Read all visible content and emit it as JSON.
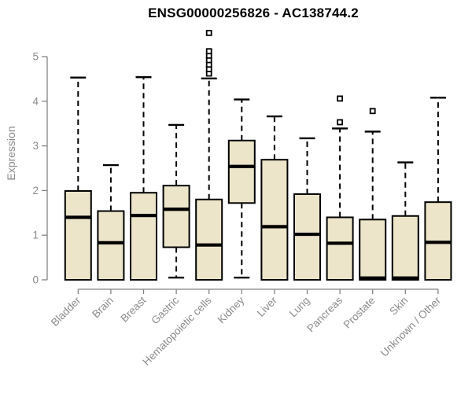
{
  "chart_data": {
    "type": "boxplot",
    "title": "ENSG00000256826 - AC138744.2",
    "ylabel": "Expression",
    "xlabel": "",
    "ylim": [
      0,
      5
    ],
    "yticks": [
      0,
      1,
      2,
      3,
      4,
      5
    ],
    "grid": false,
    "legend": "none",
    "categories": [
      "Bladder",
      "Brain",
      "Breast",
      "Gastric",
      "Hematopoietic cells",
      "Kidney",
      "Liver",
      "Lung",
      "Pancreas",
      "Prostate",
      "Skin",
      "Unknown / Other"
    ],
    "series": [
      {
        "name": "Bladder",
        "low": 0,
        "q1": 0,
        "median": 1.4,
        "q3": 1.99,
        "high": 4.53,
        "outliers": []
      },
      {
        "name": "Brain",
        "low": 0,
        "q1": 0,
        "median": 0.83,
        "q3": 1.54,
        "high": 2.57,
        "outliers": []
      },
      {
        "name": "Breast",
        "low": 0,
        "q1": 0,
        "median": 1.44,
        "q3": 1.95,
        "high": 4.54,
        "outliers": []
      },
      {
        "name": "Gastric",
        "low": 0.05,
        "q1": 0.73,
        "median": 1.58,
        "q3": 2.11,
        "high": 3.47,
        "outliers": []
      },
      {
        "name": "Hematopoietic cells",
        "low": 0,
        "q1": 0,
        "median": 0.78,
        "q3": 1.8,
        "high": 4.51,
        "outliers": [
          4.62,
          4.72,
          4.82,
          4.92,
          5.02,
          5.12,
          5.53
        ]
      },
      {
        "name": "Kidney",
        "low": 0.05,
        "q1": 1.72,
        "median": 2.54,
        "q3": 3.12,
        "high": 4.04,
        "outliers": []
      },
      {
        "name": "Liver",
        "low": 0,
        "q1": 0,
        "median": 1.19,
        "q3": 2.69,
        "high": 3.66,
        "outliers": []
      },
      {
        "name": "Lung",
        "low": 0,
        "q1": 0,
        "median": 1.02,
        "q3": 1.92,
        "high": 3.17,
        "outliers": []
      },
      {
        "name": "Pancreas",
        "low": 0,
        "q1": 0,
        "median": 0.82,
        "q3": 1.4,
        "high": 3.39,
        "outliers": [
          3.53,
          4.06
        ]
      },
      {
        "name": "Prostate",
        "low": 0,
        "q1": 0,
        "median": 0.04,
        "q3": 1.35,
        "high": 3.32,
        "outliers": [
          3.78
        ]
      },
      {
        "name": "Skin",
        "low": 0,
        "q1": 0,
        "median": 0.04,
        "q3": 1.43,
        "high": 2.63,
        "outliers": []
      },
      {
        "name": "Unknown / Other",
        "low": 0,
        "q1": 0,
        "median": 0.84,
        "q3": 1.74,
        "high": 4.08,
        "outliers": []
      }
    ],
    "colors": {
      "box_fill": "#ECE5C9",
      "box_stroke": "#000000",
      "median": "#000000",
      "whisker": "#000000",
      "outlier_stroke": "#000000",
      "outlier_fill": "#ffffff",
      "axis": "#848484",
      "tick_label": "#8a8a8a",
      "title": "#000000",
      "background": "#ffffff"
    }
  }
}
